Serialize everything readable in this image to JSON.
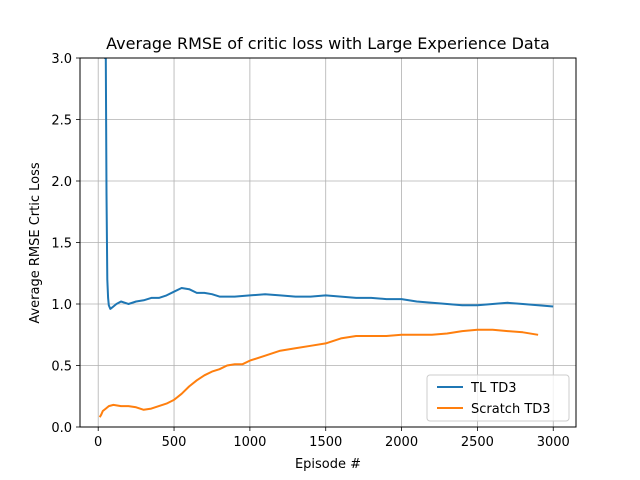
{
  "chart_data": {
    "type": "line",
    "title": "Average RMSE of critic loss with Large Experience Data",
    "xlabel": "Episode #",
    "ylabel": "Average RMSE Crtic Loss",
    "xlim": [
      -120,
      3150
    ],
    "ylim": [
      0,
      3.0
    ],
    "xticks": [
      0,
      500,
      1000,
      1500,
      2000,
      2500,
      3000
    ],
    "yticks": [
      0.0,
      0.5,
      1.0,
      1.5,
      2.0,
      2.5,
      3.0
    ],
    "xtick_labels": [
      "0",
      "500",
      "1000",
      "1500",
      "2000",
      "2500",
      "3000"
    ],
    "ytick_labels": [
      "0.0",
      "0.5",
      "1.0",
      "1.5",
      "2.0",
      "2.5",
      "3.0"
    ],
    "grid": true,
    "legend_position": "lower-right",
    "series": [
      {
        "name": "TL TD3",
        "color": "#1f77b4",
        "x": [
          40,
          45,
          50,
          55,
          60,
          65,
          70,
          80,
          90,
          100,
          120,
          150,
          200,
          250,
          300,
          350,
          400,
          450,
          500,
          550,
          600,
          650,
          700,
          750,
          800,
          900,
          1000,
          1100,
          1200,
          1300,
          1400,
          1500,
          1600,
          1700,
          1800,
          1900,
          2000,
          2100,
          2200,
          2300,
          2400,
          2500,
          2600,
          2700,
          2800,
          2900,
          3000
        ],
        "y": [
          3.0,
          3.0,
          3.0,
          1.9,
          1.2,
          1.05,
          0.99,
          0.96,
          0.97,
          0.98,
          1.0,
          1.02,
          1.0,
          1.02,
          1.03,
          1.05,
          1.05,
          1.07,
          1.1,
          1.13,
          1.12,
          1.09,
          1.09,
          1.08,
          1.06,
          1.06,
          1.07,
          1.08,
          1.07,
          1.06,
          1.06,
          1.07,
          1.06,
          1.05,
          1.05,
          1.04,
          1.04,
          1.02,
          1.01,
          1.0,
          0.99,
          0.99,
          1.0,
          1.01,
          1.0,
          0.99,
          0.98
        ]
      },
      {
        "name": "Scratch TD3",
        "color": "#ff7f0e",
        "x": [
          10,
          20,
          30,
          50,
          70,
          100,
          150,
          200,
          250,
          300,
          350,
          400,
          450,
          500,
          550,
          600,
          650,
          700,
          750,
          800,
          850,
          900,
          950,
          1000,
          1100,
          1200,
          1300,
          1400,
          1500,
          1600,
          1700,
          1800,
          1900,
          2000,
          2100,
          2200,
          2300,
          2400,
          2500,
          2600,
          2700,
          2800,
          2900
        ],
        "y": [
          0.08,
          0.1,
          0.13,
          0.15,
          0.17,
          0.18,
          0.17,
          0.17,
          0.16,
          0.14,
          0.15,
          0.17,
          0.19,
          0.22,
          0.27,
          0.33,
          0.38,
          0.42,
          0.45,
          0.47,
          0.5,
          0.51,
          0.51,
          0.54,
          0.58,
          0.62,
          0.64,
          0.66,
          0.68,
          0.72,
          0.74,
          0.74,
          0.74,
          0.75,
          0.75,
          0.75,
          0.76,
          0.78,
          0.79,
          0.79,
          0.78,
          0.77,
          0.75
        ]
      }
    ]
  }
}
